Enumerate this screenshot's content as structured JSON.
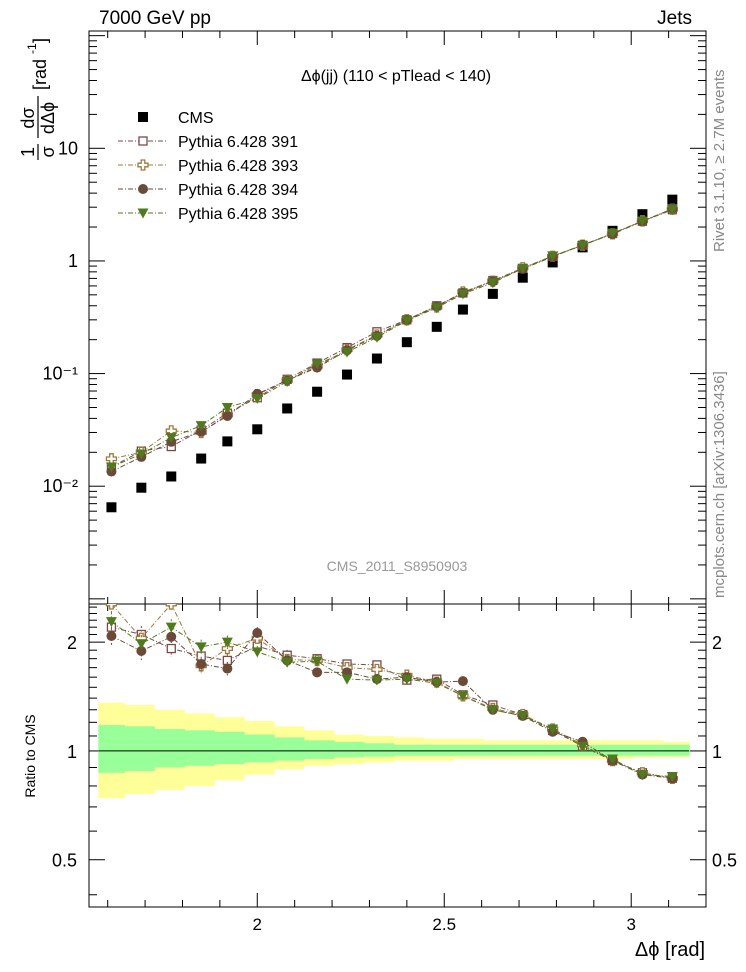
{
  "header": {
    "left": "7000 GeV pp",
    "right": "Jets"
  },
  "side_labels": {
    "upper": "Rivet 3.1.10, ≥ 2.7M events",
    "lower": "mcplots.cern.ch [arXiv:1306.3436]"
  },
  "watermark": "CMS_2011_S8950903",
  "colors": {
    "cms": "#000000",
    "p391": "#7a4a4a",
    "p393": "#a0783c",
    "p394": "#6b4a3a",
    "p395": "#4f7a1e",
    "band_yellow": "#ffff99",
    "band_green": "#99ff99"
  },
  "chart_data": [
    {
      "type": "scatter",
      "panel": "main",
      "title": "Δϕ(jj) (110 < pTlead <  140)",
      "ylabel": "1/σ dσ/dΔϕ [rad⁻¹]",
      "y_scale": "log",
      "xlim": [
        1.55,
        3.2
      ],
      "ylim": [
        0.0009,
        110
      ],
      "y_tick_labels": [
        "10⁻²",
        "10⁻¹",
        "1",
        "10"
      ],
      "legend_position": "top-left",
      "x": [
        1.61,
        1.69,
        1.77,
        1.85,
        1.92,
        2.0,
        2.08,
        2.16,
        2.24,
        2.32,
        2.4,
        2.48,
        2.55,
        2.63,
        2.71,
        2.79,
        2.87,
        2.95,
        3.03,
        3.11
      ],
      "series": [
        {
          "name": "CMS",
          "marker": "square-filled",
          "values": [
            0.0065,
            0.0097,
            0.0122,
            0.0176,
            0.025,
            0.032,
            0.049,
            0.069,
            0.098,
            0.136,
            0.19,
            0.26,
            0.37,
            0.51,
            0.71,
            0.97,
            1.32,
            1.85,
            2.6,
            3.5
          ]
        },
        {
          "name": "Pythia 6.428 391",
          "marker": "square-open",
          "values": [
            0.0148,
            0.0205,
            0.0225,
            0.0315,
            0.0445,
            0.061,
            0.089,
            0.124,
            0.17,
            0.235,
            0.3,
            0.4,
            0.52,
            0.67,
            0.86,
            1.1,
            1.38,
            1.75,
            2.25,
            2.85
          ]
        },
        {
          "name": "Pythia 6.428 393",
          "marker": "cross-open",
          "values": [
            0.0175,
            0.02,
            0.031,
            0.03,
            0.043,
            0.065,
            0.087,
            0.116,
            0.163,
            0.22,
            0.3,
            0.39,
            0.53,
            0.66,
            0.87,
            1.1,
            1.38,
            1.74,
            2.27,
            2.88
          ]
        },
        {
          "name": "Pythia 6.428 394",
          "marker": "circle-filled",
          "values": [
            0.0135,
            0.0182,
            0.0248,
            0.0305,
            0.042,
            0.066,
            0.087,
            0.113,
            0.161,
            0.216,
            0.3,
            0.395,
            0.52,
            0.66,
            0.85,
            1.09,
            1.39,
            1.73,
            2.25,
            2.9
          ]
        },
        {
          "name": "Pythia 6.428 395",
          "marker": "triangle-down-filled",
          "values": [
            0.0148,
            0.0193,
            0.027,
            0.0345,
            0.05,
            0.06,
            0.085,
            0.122,
            0.155,
            0.21,
            0.295,
            0.385,
            0.51,
            0.64,
            0.86,
            1.11,
            1.37,
            1.76,
            2.26,
            2.85
          ]
        }
      ]
    },
    {
      "type": "scatter",
      "panel": "ratio",
      "xlabel": "Δϕ [rad]",
      "ylabel": "Ratio to CMS",
      "y_scale": "log",
      "xlim": [
        1.55,
        3.2
      ],
      "ylim": [
        0.37,
        2.55
      ],
      "x_ticks": [
        2,
        2.5,
        3
      ],
      "y_ticks": [
        0.5,
        1,
        2
      ],
      "x": [
        1.61,
        1.69,
        1.77,
        1.85,
        1.92,
        2.0,
        2.08,
        2.16,
        2.24,
        2.32,
        2.4,
        2.48,
        2.55,
        2.63,
        2.71,
        2.79,
        2.87,
        2.95,
        3.03,
        3.11
      ],
      "band_edges": [
        1.575,
        1.645,
        1.725,
        1.805,
        1.885,
        1.965,
        2.045,
        2.125,
        2.205,
        2.285,
        2.365,
        2.445,
        2.525,
        2.605,
        2.685,
        2.765,
        2.845,
        2.925,
        3.005,
        3.085,
        3.155
      ],
      "band_yellow": [
        [
          0.74,
          1.36
        ],
        [
          0.76,
          1.34
        ],
        [
          0.78,
          1.3
        ],
        [
          0.8,
          1.27
        ],
        [
          0.83,
          1.24
        ],
        [
          0.86,
          1.21
        ],
        [
          0.89,
          1.17
        ],
        [
          0.91,
          1.14
        ],
        [
          0.92,
          1.11
        ],
        [
          0.93,
          1.1
        ],
        [
          0.94,
          1.09
        ],
        [
          0.94,
          1.08
        ],
        [
          0.95,
          1.08
        ],
        [
          0.95,
          1.07
        ],
        [
          0.95,
          1.07
        ],
        [
          0.95,
          1.07
        ],
        [
          0.95,
          1.07
        ],
        [
          0.95,
          1.07
        ],
        [
          0.96,
          1.07
        ],
        [
          0.96,
          1.06
        ]
      ],
      "band_green": [
        [
          0.87,
          1.18
        ],
        [
          0.88,
          1.17
        ],
        [
          0.9,
          1.15
        ],
        [
          0.91,
          1.14
        ],
        [
          0.92,
          1.13
        ],
        [
          0.93,
          1.11
        ],
        [
          0.94,
          1.09
        ],
        [
          0.95,
          1.07
        ],
        [
          0.96,
          1.06
        ],
        [
          0.965,
          1.05
        ],
        [
          0.97,
          1.04
        ],
        [
          0.97,
          1.04
        ],
        [
          0.97,
          1.04
        ],
        [
          0.97,
          1.04
        ],
        [
          0.97,
          1.04
        ],
        [
          0.97,
          1.04
        ],
        [
          0.97,
          1.04
        ],
        [
          0.97,
          1.04
        ],
        [
          0.97,
          1.04
        ],
        [
          0.97,
          1.04
        ]
      ],
      "series": [
        {
          "name": "Pythia 6.428 391",
          "marker": "square-open",
          "values": [
            2.2,
            2.1,
            1.92,
            1.83,
            1.78,
            1.95,
            1.84,
            1.8,
            1.74,
            1.73,
            1.57,
            1.58,
            1.43,
            1.34,
            1.26,
            1.14,
            1.03,
            0.94,
            0.87,
            0.84
          ]
        },
        {
          "name": "Pythia 6.428 393",
          "marker": "cross-open",
          "values": [
            2.55,
            2.05,
            2.55,
            1.72,
            1.92,
            2.05,
            1.79,
            1.78,
            1.7,
            1.68,
            1.62,
            1.55,
            1.42,
            1.31,
            1.26,
            1.15,
            1.04,
            0.94,
            0.87,
            0.84
          ]
        },
        {
          "name": "Pythia 6.428 394",
          "marker": "circle-filled",
          "values": [
            2.08,
            1.89,
            2.07,
            1.74,
            1.69,
            2.12,
            1.78,
            1.65,
            1.65,
            1.58,
            1.6,
            1.55,
            1.56,
            1.3,
            1.25,
            1.13,
            1.06,
            0.94,
            0.86,
            0.84
          ]
        },
        {
          "name": "Pythia 6.428 395",
          "marker": "triangle-down-filled",
          "values": [
            2.28,
            1.98,
            2.2,
            1.94,
            2.0,
            1.88,
            1.76,
            1.77,
            1.58,
            1.57,
            1.58,
            1.54,
            1.42,
            1.3,
            1.25,
            1.15,
            1.03,
            0.95,
            0.86,
            0.85
          ]
        }
      ]
    }
  ]
}
